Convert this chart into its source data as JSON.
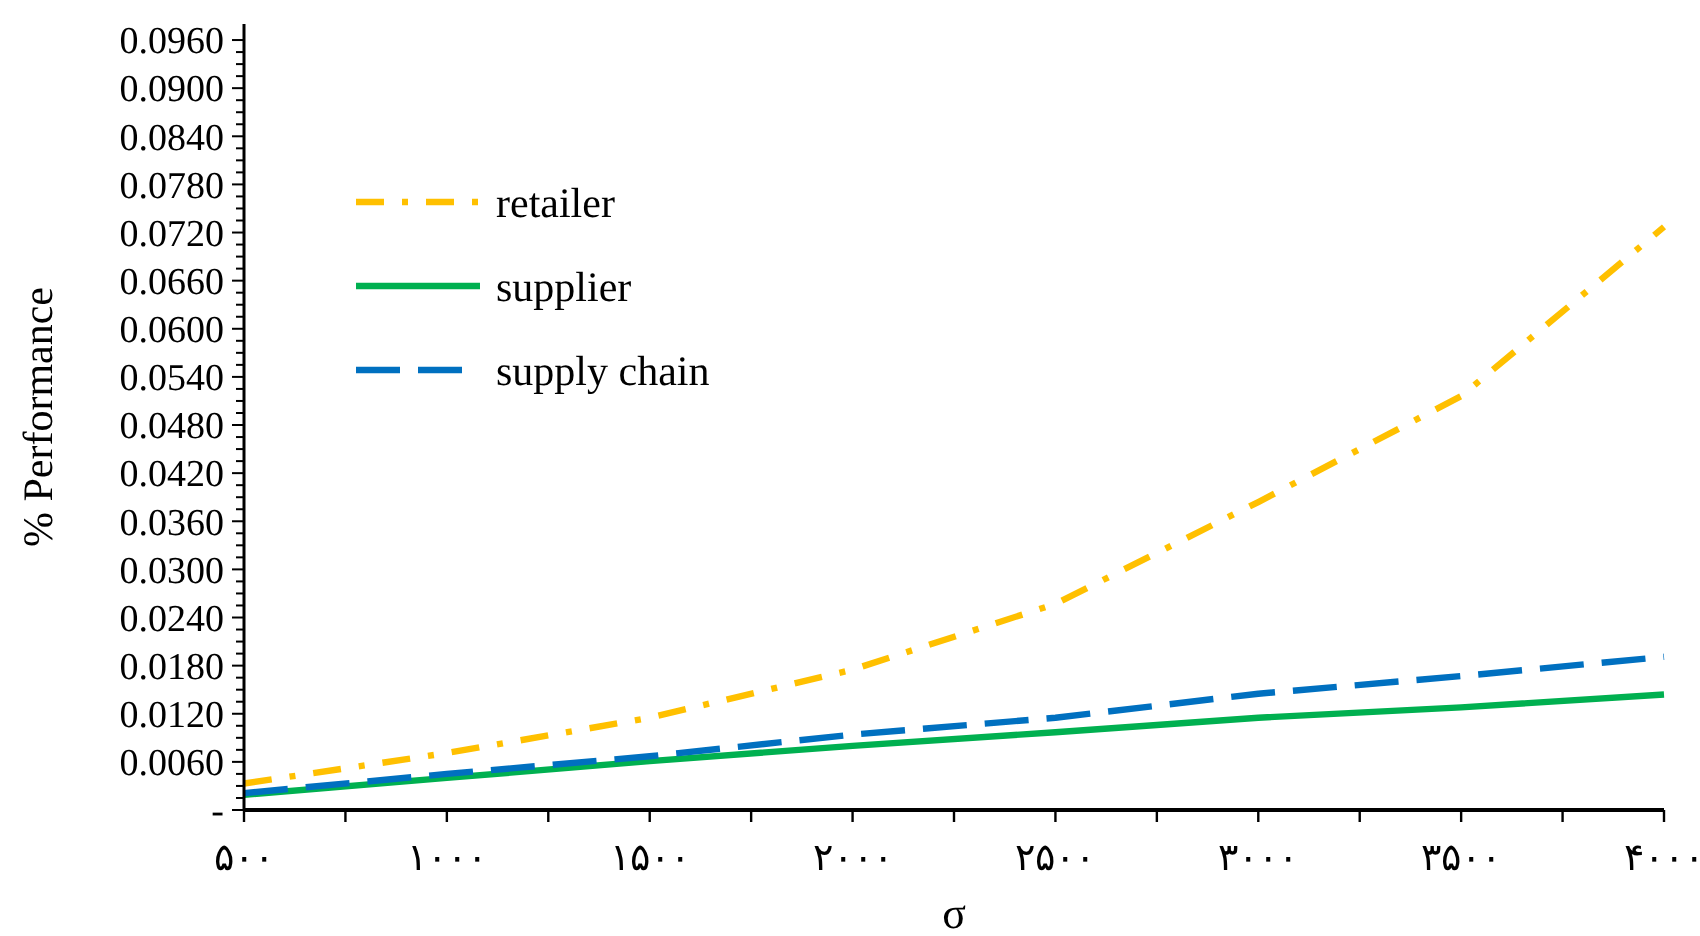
{
  "chart_data": {
    "type": "line",
    "xlabel": "σ",
    "ylabel": "% Performance",
    "x": [
      500,
      1000,
      1500,
      2000,
      2500,
      3000,
      3500,
      4000
    ],
    "xlim": [
      500,
      4000
    ],
    "xticks": [
      {
        "value": 500,
        "label": "۵۰۰"
      },
      {
        "value": 750,
        "label": null
      },
      {
        "value": 1000,
        "label": "۱۰۰۰"
      },
      {
        "value": 1250,
        "label": null
      },
      {
        "value": 1500,
        "label": "۱۵۰۰"
      },
      {
        "value": 1750,
        "label": null
      },
      {
        "value": 2000,
        "label": "۲۰۰۰"
      },
      {
        "value": 2250,
        "label": null
      },
      {
        "value": 2500,
        "label": "۲۵۰۰"
      },
      {
        "value": 2750,
        "label": null
      },
      {
        "value": 3000,
        "label": "۳۰۰۰"
      },
      {
        "value": 3250,
        "label": null
      },
      {
        "value": 3500,
        "label": "۳۵۰۰"
      },
      {
        "value": 3750,
        "label": null
      },
      {
        "value": 4000,
        "label": "۴۰۰۰"
      }
    ],
    "ylim": [
      0,
      0.098
    ],
    "yticks": [
      {
        "value": 0,
        "label": "-"
      },
      {
        "value": 0.0015,
        "label": null
      },
      {
        "value": 0.003,
        "label": null
      },
      {
        "value": 0.0045,
        "label": null
      },
      {
        "value": 0.006,
        "label": "0.0060"
      },
      {
        "value": 0.0075,
        "label": null
      },
      {
        "value": 0.009,
        "label": null
      },
      {
        "value": 0.0105,
        "label": null
      },
      {
        "value": 0.012,
        "label": "0.0120"
      },
      {
        "value": 0.0135,
        "label": null
      },
      {
        "value": 0.015,
        "label": null
      },
      {
        "value": 0.0165,
        "label": null
      },
      {
        "value": 0.018,
        "label": "0.0180"
      },
      {
        "value": 0.0195,
        "label": null
      },
      {
        "value": 0.021,
        "label": null
      },
      {
        "value": 0.0225,
        "label": null
      },
      {
        "value": 0.024,
        "label": "0.0240"
      },
      {
        "value": 0.0255,
        "label": null
      },
      {
        "value": 0.027,
        "label": null
      },
      {
        "value": 0.0285,
        "label": null
      },
      {
        "value": 0.03,
        "label": "0.0300"
      },
      {
        "value": 0.0315,
        "label": null
      },
      {
        "value": 0.033,
        "label": null
      },
      {
        "value": 0.0345,
        "label": null
      },
      {
        "value": 0.036,
        "label": "0.0360"
      },
      {
        "value": 0.0375,
        "label": null
      },
      {
        "value": 0.039,
        "label": null
      },
      {
        "value": 0.0405,
        "label": null
      },
      {
        "value": 0.042,
        "label": "0.0420"
      },
      {
        "value": 0.0435,
        "label": null
      },
      {
        "value": 0.045,
        "label": null
      },
      {
        "value": 0.0465,
        "label": null
      },
      {
        "value": 0.048,
        "label": "0.0480"
      },
      {
        "value": 0.0495,
        "label": null
      },
      {
        "value": 0.051,
        "label": null
      },
      {
        "value": 0.0525,
        "label": null
      },
      {
        "value": 0.054,
        "label": "0.0540"
      },
      {
        "value": 0.0555,
        "label": null
      },
      {
        "value": 0.057,
        "label": null
      },
      {
        "value": 0.0585,
        "label": null
      },
      {
        "value": 0.06,
        "label": "0.0600"
      },
      {
        "value": 0.0615,
        "label": null
      },
      {
        "value": 0.063,
        "label": null
      },
      {
        "value": 0.0645,
        "label": null
      },
      {
        "value": 0.066,
        "label": "0.0660"
      },
      {
        "value": 0.0675,
        "label": null
      },
      {
        "value": 0.069,
        "label": null
      },
      {
        "value": 0.0705,
        "label": null
      },
      {
        "value": 0.072,
        "label": "0.0720"
      },
      {
        "value": 0.0735,
        "label": null
      },
      {
        "value": 0.075,
        "label": null
      },
      {
        "value": 0.0765,
        "label": null
      },
      {
        "value": 0.078,
        "label": "0.0780"
      },
      {
        "value": 0.0795,
        "label": null
      },
      {
        "value": 0.081,
        "label": null
      },
      {
        "value": 0.0825,
        "label": null
      },
      {
        "value": 0.084,
        "label": "0.0840"
      },
      {
        "value": 0.0855,
        "label": null
      },
      {
        "value": 0.087,
        "label": null
      },
      {
        "value": 0.0885,
        "label": null
      },
      {
        "value": 0.09,
        "label": "0.0900"
      },
      {
        "value": 0.0915,
        "label": null
      },
      {
        "value": 0.093,
        "label": null
      },
      {
        "value": 0.0945,
        "label": null
      },
      {
        "value": 0.096,
        "label": "0.0960"
      }
    ],
    "grid": false,
    "legend": "top left",
    "marker": "none",
    "series": [
      {
        "name": "retailer",
        "color": "#ffc000",
        "line_style": "dashdot",
        "values": [
          0.0033,
          0.0071,
          0.0115,
          0.0175,
          0.0257,
          0.0384,
          0.0516,
          0.0727
        ]
      },
      {
        "name": "supplier",
        "color": "#00b050",
        "line_style": "solid",
        "values": [
          0.0019,
          0.004,
          0.0061,
          0.008,
          0.0097,
          0.0115,
          0.0128,
          0.0144
        ]
      },
      {
        "name": "supply chain",
        "color": "#0070c0",
        "line_style": "dashed",
        "values": [
          0.0021,
          0.0045,
          0.0067,
          0.0094,
          0.0115,
          0.0145,
          0.0167,
          0.0191
        ]
      }
    ]
  }
}
